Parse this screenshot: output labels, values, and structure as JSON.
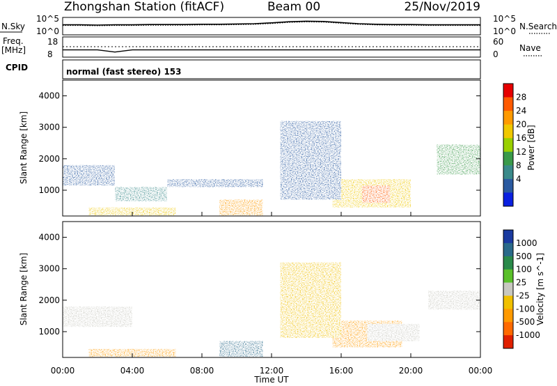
{
  "header": {
    "title": "Zhongshan Station (fitACF)",
    "beam": "Beam 00",
    "date": "25/Nov/2019"
  },
  "noise_panel": {
    "left_label": "N.Sky",
    "right_label": "N.Search",
    "left_ticks": [
      "10^5",
      "10^0"
    ],
    "right_ticks": [
      "10^5",
      "10^0"
    ]
  },
  "freq_panel": {
    "left_label": "Freq.",
    "left_unit": "[MHz]",
    "right_label": "Nave",
    "left_ticks": [
      "18",
      "8"
    ],
    "right_ticks": [
      "60",
      "0"
    ]
  },
  "cpid": {
    "label": "CPID",
    "value": "normal (fast stereo) 153"
  },
  "power_panel": {
    "ylabel": "Slant Range [km]",
    "colorbar_label": "Power [dB]",
    "colorbar_ticks": [
      "28",
      "24",
      "20",
      "16",
      "12",
      "8",
      "4"
    ],
    "colorbar_colors": [
      "#e60000",
      "#ff5a00",
      "#ff9a00",
      "#f0c800",
      "#9ad000",
      "#3a9a4a",
      "#3a8a8a",
      "#2a5aa0",
      "#0a20e0"
    ]
  },
  "velocity_panel": {
    "ylabel": "Slant Range [km]",
    "colorbar_label": "Velocity [m s^-1]",
    "colorbar_ticks": [
      "1000",
      "500",
      "100",
      "25",
      "-25",
      "-100",
      "-500",
      "-1000"
    ],
    "colorbar_colors": [
      "#1a3aa0",
      "#2a6a8a",
      "#2a8a4a",
      "#5ac02a",
      "#c8c8c0",
      "#f0c000",
      "#ff9a00",
      "#ff6a00",
      "#e02000"
    ]
  },
  "xaxis": {
    "label": "Time UT",
    "ticks": [
      "00:00",
      "04:00",
      "08:00",
      "12:00",
      "16:00",
      "20:00",
      "00:00"
    ]
  },
  "chart_data": {
    "type": "heatmap",
    "title": "Zhongshan Station (fitACF)",
    "xlabel": "Time UT",
    "ylabel": "Slant Range [km]",
    "xlim_hours": [
      0,
      24
    ],
    "ylim_km": [
      180,
      4500
    ],
    "yticks_km": [
      1000,
      2000,
      3000,
      4000
    ],
    "grid": false,
    "power_regions": [
      {
        "t": [
          0.0,
          3.0
        ],
        "r": [
          1150,
          1800
        ],
        "db": 6
      },
      {
        "t": [
          3.0,
          6.0
        ],
        "r": [
          650,
          1100
        ],
        "db": 8
      },
      {
        "t": [
          6.0,
          11.5
        ],
        "r": [
          1100,
          1350
        ],
        "db": 6
      },
      {
        "t": [
          1.5,
          6.5
        ],
        "r": [
          200,
          450
        ],
        "db": 20
      },
      {
        "t": [
          9.0,
          11.5
        ],
        "r": [
          200,
          700
        ],
        "db": 26
      },
      {
        "t": [
          15.5,
          20.0
        ],
        "r": [
          450,
          1350
        ],
        "db": 20
      },
      {
        "t": [
          17.2,
          18.8
        ],
        "r": [
          600,
          1150
        ],
        "db": 28
      },
      {
        "t": [
          21.5,
          24.0
        ],
        "r": [
          1500,
          2450
        ],
        "db": 12
      },
      {
        "t": [
          12.5,
          16.0
        ],
        "r": [
          700,
          3200
        ],
        "db": 6
      }
    ],
    "velocity_regions": [
      {
        "t": [
          0.0,
          4.0
        ],
        "r": [
          1150,
          1800
        ],
        "v": 0
      },
      {
        "t": [
          1.5,
          6.5
        ],
        "r": [
          200,
          450
        ],
        "v": -200
      },
      {
        "t": [
          9.0,
          11.5
        ],
        "r": [
          200,
          700
        ],
        "v": 700
      },
      {
        "t": [
          15.5,
          19.5
        ],
        "r": [
          500,
          1350
        ],
        "v": -300
      },
      {
        "t": [
          17.5,
          20.5
        ],
        "r": [
          700,
          1250
        ],
        "v": 0
      },
      {
        "t": [
          21.0,
          24.0
        ],
        "r": [
          1700,
          2300
        ],
        "v": 0
      },
      {
        "t": [
          12.5,
          16.0
        ],
        "r": [
          800,
          3200
        ],
        "v": -100
      }
    ],
    "noise_sky_log": [
      3.1,
      3.1,
      3.0,
      3.1,
      3.1,
      3.2,
      3.2,
      3.2,
      3.3,
      3.3,
      3.4,
      3.5,
      3.8,
      4.2,
      4.4,
      4.3,
      3.9,
      3.5,
      3.3,
      3.2,
      3.2,
      3.1,
      3.1,
      3.1,
      3.1
    ],
    "freq_mhz": [
      11.5,
      11.5,
      11.5,
      10.2,
      11.5,
      11.5,
      11.5,
      11.5,
      11.5,
      11.5,
      11.5,
      11.5,
      11.5,
      11.5,
      11.5,
      11.5,
      11.5,
      11.5,
      11.5,
      11.5,
      11.5,
      11.5,
      11.5,
      11.5,
      11.5
    ]
  }
}
